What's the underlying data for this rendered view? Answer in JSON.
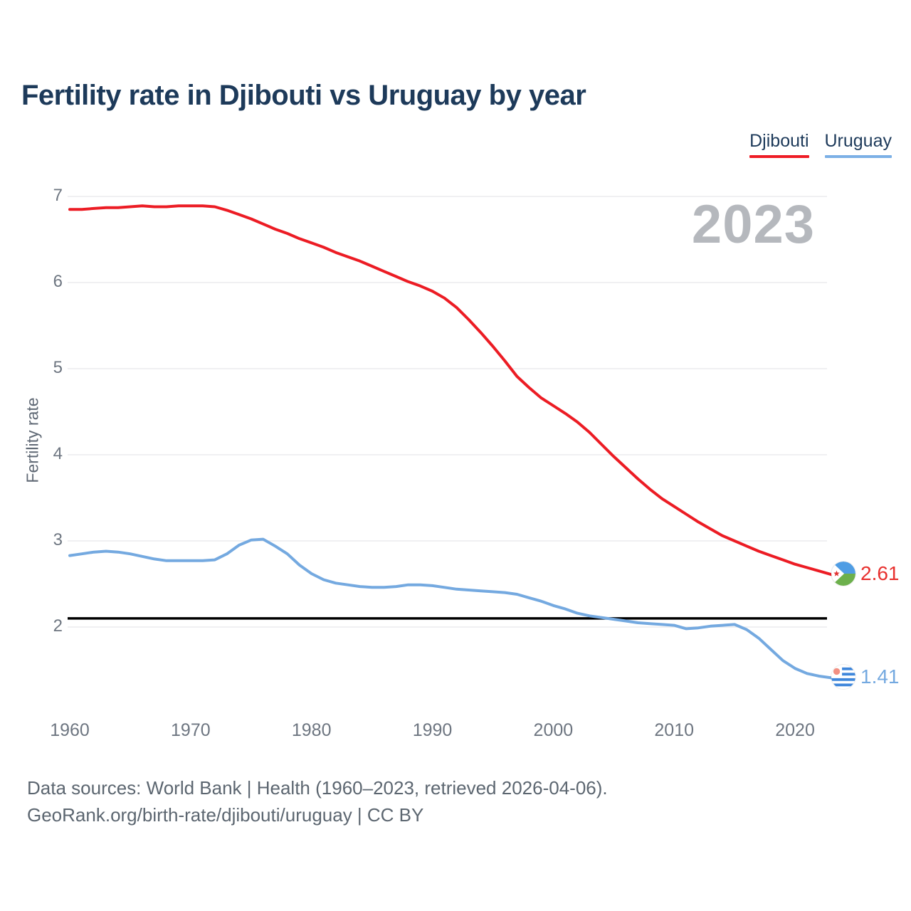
{
  "title": "Fertility rate in Djibouti vs Uruguay by year",
  "legend": {
    "items": [
      {
        "label": "Djibouti",
        "color": "#ee1c25"
      },
      {
        "label": "Uruguay",
        "color": "#7cb0e6"
      }
    ]
  },
  "watermark": "2023",
  "end_labels": {
    "djibouti": {
      "value": "2.61",
      "color": "#e8302e",
      "flag": "djibouti-flag"
    },
    "uruguay": {
      "value": "1.41",
      "color": "#74a9e0",
      "flag": "uruguay-flag"
    }
  },
  "footer": {
    "line1": "Data sources: World Bank | Health (1960–2023, retrieved 2026-04-06).",
    "line2": "GeoRank.org/birth-rate/djibouti/uruguay | CC BY"
  },
  "chart_data": {
    "type": "line",
    "title": "Fertility rate in Djibouti vs Uruguay by year",
    "xlabel": "",
    "ylabel": "Fertility rate",
    "x": [
      1960,
      1961,
      1962,
      1963,
      1964,
      1965,
      1966,
      1967,
      1968,
      1969,
      1970,
      1971,
      1972,
      1973,
      1974,
      1975,
      1976,
      1977,
      1978,
      1979,
      1980,
      1981,
      1982,
      1983,
      1984,
      1985,
      1986,
      1987,
      1988,
      1989,
      1990,
      1991,
      1992,
      1993,
      1994,
      1995,
      1996,
      1997,
      1998,
      1999,
      2000,
      2001,
      2002,
      2003,
      2004,
      2005,
      2006,
      2007,
      2008,
      2009,
      2010,
      2011,
      2012,
      2013,
      2014,
      2015,
      2016,
      2017,
      2018,
      2019,
      2020,
      2021,
      2022,
      2023
    ],
    "series": [
      {
        "name": "Djibouti",
        "color": "#ec1c24",
        "values": [
          6.85,
          6.85,
          6.86,
          6.87,
          6.87,
          6.88,
          6.89,
          6.88,
          6.88,
          6.89,
          6.89,
          6.89,
          6.88,
          6.84,
          6.79,
          6.74,
          6.68,
          6.62,
          6.57,
          6.51,
          6.46,
          6.41,
          6.35,
          6.3,
          6.25,
          6.19,
          6.13,
          6.07,
          6.01,
          5.96,
          5.9,
          5.82,
          5.71,
          5.57,
          5.42,
          5.26,
          5.09,
          4.91,
          4.78,
          4.66,
          4.57,
          4.48,
          4.38,
          4.26,
          4.12,
          3.98,
          3.85,
          3.72,
          3.6,
          3.49,
          3.4,
          3.31,
          3.22,
          3.14,
          3.06,
          3.0,
          2.94,
          2.88,
          2.83,
          2.78,
          2.73,
          2.69,
          2.65,
          2.61
        ]
      },
      {
        "name": "Uruguay",
        "color": "#74a9e0",
        "values": [
          2.83,
          2.85,
          2.87,
          2.88,
          2.87,
          2.85,
          2.82,
          2.79,
          2.77,
          2.77,
          2.77,
          2.77,
          2.78,
          2.85,
          2.95,
          3.01,
          3.02,
          2.94,
          2.85,
          2.72,
          2.62,
          2.55,
          2.51,
          2.49,
          2.47,
          2.46,
          2.46,
          2.47,
          2.49,
          2.49,
          2.48,
          2.46,
          2.44,
          2.43,
          2.42,
          2.41,
          2.4,
          2.38,
          2.34,
          2.3,
          2.25,
          2.21,
          2.16,
          2.13,
          2.11,
          2.09,
          2.07,
          2.05,
          2.04,
          2.03,
          2.02,
          1.98,
          1.99,
          2.01,
          2.02,
          2.03,
          1.97,
          1.87,
          1.74,
          1.61,
          1.52,
          1.46,
          1.43,
          1.41
        ]
      }
    ],
    "reference_line": {
      "value": 2.1,
      "color": "#000000"
    },
    "xticks": [
      1960,
      1970,
      1980,
      1990,
      2000,
      2010,
      2020
    ],
    "yticks": [
      2,
      3,
      4,
      5,
      6,
      7
    ],
    "ylim": [
      1.2,
      7.1
    ],
    "xlim": [
      1960,
      2023
    ],
    "grid": true,
    "legend_position": "top-right",
    "end_values": {
      "Djibouti": 2.61,
      "Uruguay": 1.41
    }
  }
}
